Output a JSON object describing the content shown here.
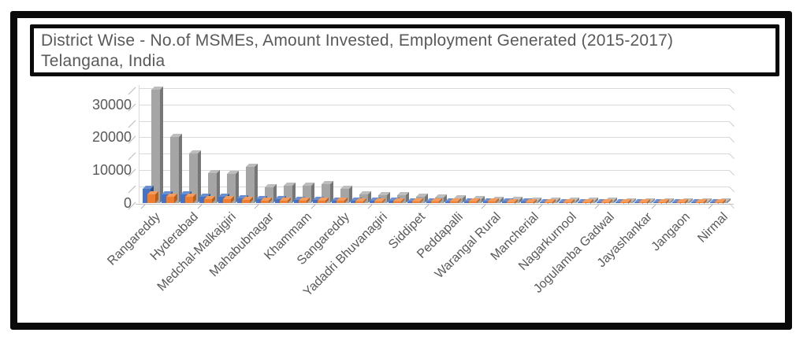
{
  "title": {
    "line1": "District Wise - No.of MSMEs, Amount Invested, Employment Generated (2015-2017)",
    "line2": "Telangana, India"
  },
  "chart_data": {
    "type": "bar",
    "style": "3d-clustered-column",
    "title": "District Wise - No.of MSMEs, Amount Invested, Employment Generated (2015-2017) Telangana, India",
    "legend": "none",
    "grid": "on",
    "y_axis": {
      "tick_labels": [
        "0",
        "10000",
        "20000",
        "30000"
      ],
      "major_step": 10000,
      "minor_gridline_step": 5000,
      "ylim": [
        0,
        37500
      ]
    },
    "x_axis": {
      "total_categories": 31,
      "label_interval": 2,
      "categories": [
        "Rangareddy",
        "",
        "Hyderabad",
        "",
        "Medchal-Malkajgiri",
        "",
        "Mahabubnagar",
        "",
        "Khammam",
        "",
        "Sangareddy",
        "",
        "Yadadri Bhuvanagiri",
        "",
        "Siddipet",
        "",
        "Peddapalli",
        "",
        "Warangal Rural",
        "",
        "Mancherial",
        "",
        "Nagarkurnool",
        "",
        "Jogulamba Gadwal",
        "",
        "Jayashankar",
        "",
        "Jangaon",
        "",
        "Nirmal"
      ]
    },
    "series": [
      {
        "name": "blue",
        "color": "#4472C4",
        "values": [
          4200,
          2700,
          2600,
          2000,
          1900,
          1500,
          1200,
          1100,
          1000,
          900,
          800,
          700,
          650,
          600,
          550,
          500,
          480,
          450,
          420,
          400,
          380,
          350,
          330,
          310,
          300,
          280,
          260,
          250,
          240,
          230,
          220
        ]
      },
      {
        "name": "orange",
        "color": "#ED7D31",
        "values": [
          2600,
          2000,
          1900,
          1200,
          1100,
          900,
          800,
          750,
          700,
          650,
          600,
          550,
          500,
          480,
          450,
          420,
          400,
          380,
          360,
          340,
          320,
          300,
          290,
          280,
          270,
          260,
          250,
          240,
          230,
          220,
          210
        ]
      },
      {
        "name": "gray",
        "color": "#A5A5A5",
        "values": [
          34500,
          20000,
          15000,
          9000,
          8800,
          11000,
          4900,
          5200,
          5300,
          5800,
          4400,
          2700,
          2400,
          2400,
          1900,
          1700,
          1400,
          1200,
          1000,
          900,
          800,
          700,
          700,
          600,
          600,
          500,
          500,
          450,
          450,
          400,
          400
        ]
      }
    ]
  },
  "colors": {
    "frame": "#0a0a0a",
    "text": "#595959",
    "gridline": "#d9d9d9"
  }
}
